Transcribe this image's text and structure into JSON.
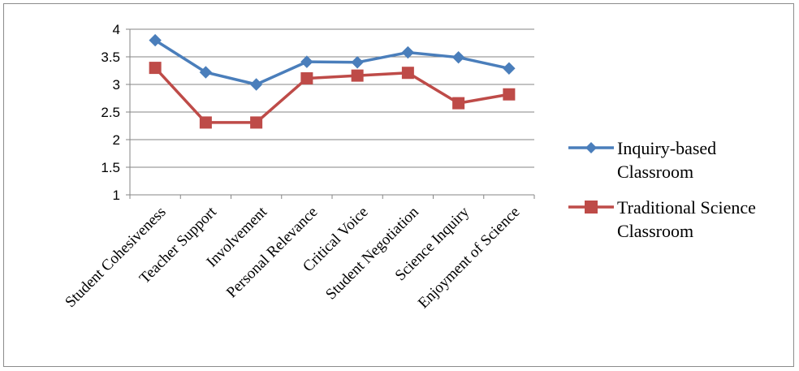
{
  "chart_data": {
    "type": "line",
    "categories": [
      "Student Cohesiveness",
      "Teacher Support",
      "Involvement",
      "Personal Relevance",
      "Critical Voice",
      "Student Negotiation",
      "Science Inquiry",
      "Enjoyment of Science"
    ],
    "series": [
      {
        "name": "Inquiry-based Classroom",
        "legend_lines": [
          "Inquiry-based",
          "Classroom"
        ],
        "color": "#4a7ebb",
        "marker": "diamond",
        "values": [
          3.8,
          3.22,
          3.0,
          3.41,
          3.4,
          3.58,
          3.49,
          3.29
        ]
      },
      {
        "name": "Traditional Science Classroom",
        "legend_lines": [
          "Traditional Science",
          "Classroom"
        ],
        "color": "#be4b48",
        "marker": "square",
        "values": [
          3.3,
          2.31,
          2.31,
          3.11,
          3.16,
          3.21,
          2.66,
          2.82
        ]
      }
    ],
    "ylim": [
      1,
      4
    ],
    "yticks": [
      "1",
      "1.5",
      "2",
      "2.5",
      "3",
      "3.5",
      "4"
    ],
    "grid": true,
    "legend": "right",
    "title": "",
    "xlabel": "",
    "ylabel": ""
  }
}
